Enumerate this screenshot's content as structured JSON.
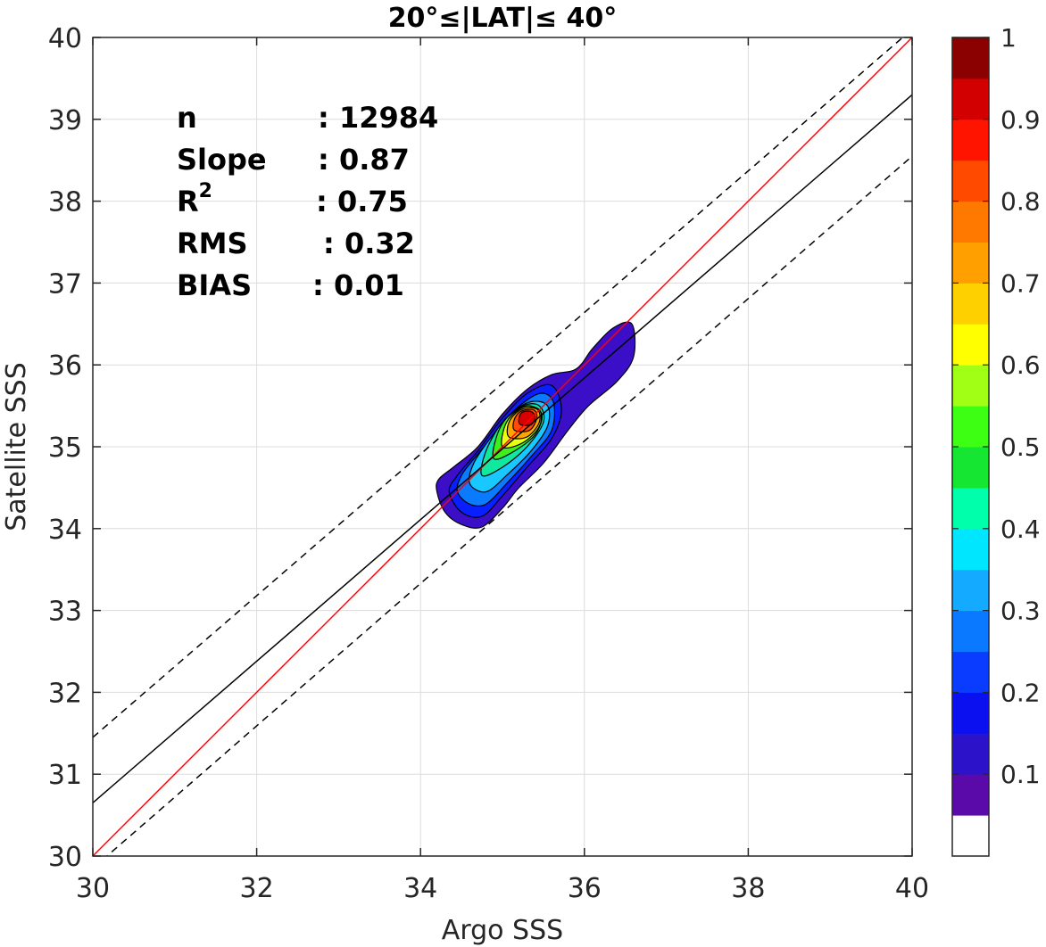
{
  "chart_data": {
    "type": "heatmap",
    "subtype": "density-contour-scatter",
    "title": "20°≤|LAT|≤ 40°",
    "xlabel": "Argo SSS",
    "ylabel": "Satellite SSS",
    "xlim": [
      30,
      40
    ],
    "ylim": [
      30,
      40
    ],
    "xticks": [
      30,
      32,
      34,
      36,
      38,
      40
    ],
    "yticks": [
      30,
      31,
      32,
      33,
      34,
      35,
      36,
      37,
      38,
      39,
      40
    ],
    "grid": true,
    "stats": [
      {
        "key": "n",
        "value": ": 12984"
      },
      {
        "key": "Slope",
        "value": ": 0.87"
      },
      {
        "key": "R",
        "sup": "2",
        "value": ": 0.75"
      },
      {
        "key": "RMS",
        "value": ": 0.32"
      },
      {
        "key": "BIAS",
        "value": ": 0.01"
      }
    ],
    "lines": [
      {
        "name": "one-to-one",
        "color": "#ff0000",
        "style": "solid",
        "x": [
          30,
          40
        ],
        "y": [
          30,
          40
        ]
      },
      {
        "name": "regression-fit",
        "color": "#000000",
        "style": "solid",
        "x": [
          30,
          40
        ],
        "y": [
          30.65,
          39.3
        ]
      },
      {
        "name": "upper-bound",
        "color": "#000000",
        "style": "dashed",
        "x": [
          30,
          40
        ],
        "y": [
          31.45,
          40.1
        ]
      },
      {
        "name": "lower-bound",
        "color": "#000000",
        "style": "dashed",
        "x": [
          30,
          40
        ],
        "y": [
          29.85,
          38.55
        ]
      }
    ],
    "density_peak": {
      "x": 35.3,
      "y": 35.35
    },
    "contours": [
      {
        "level": 0.05,
        "color": "#3B0FC8",
        "points": [
          [
            34.2,
            34.45
          ],
          [
            34.3,
            34.2
          ],
          [
            34.5,
            34.05
          ],
          [
            34.75,
            34.02
          ],
          [
            35.0,
            34.25
          ],
          [
            35.2,
            34.5
          ],
          [
            35.5,
            34.8
          ],
          [
            35.8,
            35.2
          ],
          [
            36.05,
            35.5
          ],
          [
            36.4,
            35.8
          ],
          [
            36.6,
            36.1
          ],
          [
            36.58,
            36.5
          ],
          [
            36.35,
            36.45
          ],
          [
            36.1,
            36.2
          ],
          [
            35.9,
            35.95
          ],
          [
            35.6,
            35.88
          ],
          [
            35.3,
            35.7
          ],
          [
            35.0,
            35.4
          ],
          [
            34.7,
            35.0
          ],
          [
            34.4,
            34.75
          ],
          [
            34.22,
            34.6
          ]
        ]
      },
      {
        "level": 0.15,
        "color": "#0A1FFF",
        "points": [
          [
            34.35,
            34.45
          ],
          [
            34.5,
            34.2
          ],
          [
            34.75,
            34.15
          ],
          [
            35.0,
            34.4
          ],
          [
            35.3,
            34.75
          ],
          [
            35.6,
            35.1
          ],
          [
            35.72,
            35.45
          ],
          [
            35.6,
            35.75
          ],
          [
            35.3,
            35.65
          ],
          [
            35.0,
            35.35
          ],
          [
            34.7,
            34.95
          ],
          [
            34.45,
            34.65
          ]
        ]
      },
      {
        "level": 0.25,
        "color": "#0A7AFF",
        "points": [
          [
            34.45,
            34.45
          ],
          [
            34.6,
            34.3
          ],
          [
            34.8,
            34.3
          ],
          [
            35.05,
            34.55
          ],
          [
            35.35,
            34.88
          ],
          [
            35.6,
            35.2
          ],
          [
            35.62,
            35.55
          ],
          [
            35.45,
            35.65
          ],
          [
            35.15,
            35.45
          ],
          [
            34.9,
            35.15
          ],
          [
            34.65,
            34.85
          ],
          [
            34.5,
            34.65
          ]
        ]
      },
      {
        "level": 0.35,
        "color": "#18C8FF",
        "points": [
          [
            34.6,
            34.55
          ],
          [
            34.8,
            34.45
          ],
          [
            35.05,
            34.65
          ],
          [
            35.35,
            34.95
          ],
          [
            35.55,
            35.25
          ],
          [
            35.55,
            35.5
          ],
          [
            35.35,
            35.55
          ],
          [
            35.1,
            35.4
          ],
          [
            34.85,
            35.1
          ],
          [
            34.65,
            34.8
          ]
        ]
      },
      {
        "level": 0.45,
        "color": "#10E8A0",
        "points": [
          [
            34.75,
            34.65
          ],
          [
            35.0,
            34.75
          ],
          [
            35.3,
            35.0
          ],
          [
            35.5,
            35.3
          ],
          [
            35.45,
            35.5
          ],
          [
            35.25,
            35.5
          ],
          [
            35.0,
            35.3
          ],
          [
            34.8,
            34.95
          ]
        ]
      },
      {
        "level": 0.55,
        "color": "#3CF01E",
        "points": [
          [
            34.9,
            34.85
          ],
          [
            35.15,
            34.95
          ],
          [
            35.4,
            35.15
          ],
          [
            35.48,
            35.4
          ],
          [
            35.3,
            35.5
          ],
          [
            35.05,
            35.35
          ],
          [
            34.92,
            35.1
          ]
        ]
      },
      {
        "level": 0.65,
        "color": "#E8FF10",
        "points": [
          [
            35.0,
            35.0
          ],
          [
            35.25,
            35.05
          ],
          [
            35.45,
            35.25
          ],
          [
            35.45,
            35.45
          ],
          [
            35.25,
            35.48
          ],
          [
            35.05,
            35.3
          ]
        ]
      },
      {
        "level": 0.75,
        "color": "#FFA500",
        "points": [
          [
            35.08,
            35.12
          ],
          [
            35.3,
            35.12
          ],
          [
            35.45,
            35.3
          ],
          [
            35.42,
            35.46
          ],
          [
            35.22,
            35.45
          ],
          [
            35.08,
            35.3
          ]
        ]
      },
      {
        "level": 0.85,
        "color": "#FF4A0A",
        "points": [
          [
            35.15,
            35.2
          ],
          [
            35.33,
            35.2
          ],
          [
            35.42,
            35.35
          ],
          [
            35.38,
            35.45
          ],
          [
            35.22,
            35.43
          ],
          [
            35.14,
            35.32
          ]
        ]
      },
      {
        "level": 0.95,
        "color": "#D80000",
        "points": [
          [
            35.22,
            35.27
          ],
          [
            35.35,
            35.27
          ],
          [
            35.4,
            35.36
          ],
          [
            35.35,
            35.43
          ],
          [
            35.24,
            35.42
          ],
          [
            35.2,
            35.34
          ]
        ]
      }
    ],
    "colorbar": {
      "ticks": [
        "1",
        "0.9",
        "0.8",
        "0.7",
        "0.6",
        "0.5",
        "0.4",
        "0.3",
        "0.2",
        "0.1"
      ],
      "tick_values": [
        1,
        0.9,
        0.8,
        0.7,
        0.6,
        0.5,
        0.4,
        0.3,
        0.2,
        0.1
      ],
      "range": [
        0,
        1
      ],
      "colors": [
        "#ffffff",
        "#5a0aa8",
        "#2c12c8",
        "#0a10f0",
        "#0a3cff",
        "#0a78ff",
        "#14aaff",
        "#00e6ff",
        "#00ffaa",
        "#14e632",
        "#3cff14",
        "#a0ff14",
        "#ffff00",
        "#ffd000",
        "#ffa000",
        "#ff7800",
        "#ff4a00",
        "#ff1400",
        "#d20000",
        "#8b0000"
      ]
    }
  }
}
